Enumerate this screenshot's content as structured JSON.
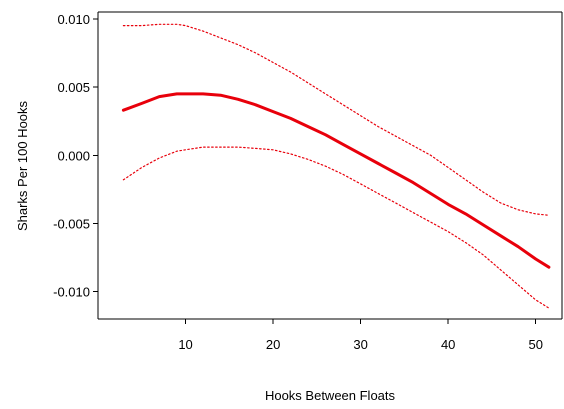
{
  "chart_data": {
    "type": "line",
    "title": "",
    "xlabel": "Hooks Between Floats",
    "ylabel": "Sharks Per 100 Hooks",
    "xlim": [
      0,
      53
    ],
    "ylim": [
      -0.012,
      0.0105
    ],
    "x_ticks": [
      10,
      20,
      30,
      40,
      50
    ],
    "y_ticks": [
      -0.01,
      -0.005,
      0.0,
      0.005,
      0.01
    ],
    "x_tick_labels": [
      "10",
      "20",
      "30",
      "40",
      "50"
    ],
    "y_tick_labels": [
      "-0.010",
      "-0.005",
      "0.000",
      "0.005",
      "0.010"
    ],
    "grid": false,
    "legend": "none",
    "colors": {
      "fit": "#e8000b",
      "bounds": "#e8000b",
      "axis": "#000000"
    },
    "series": [
      {
        "role": "fit",
        "style": "solid",
        "x": [
          2.9,
          5,
          7,
          9,
          10,
          12,
          14,
          16,
          18,
          20,
          22,
          24,
          26,
          28,
          30,
          32,
          34,
          36,
          38,
          40,
          42,
          44,
          46,
          48,
          50,
          51.5
        ],
        "y": [
          0.0033,
          0.0038,
          0.0043,
          0.0045,
          0.0045,
          0.0045,
          0.0044,
          0.0041,
          0.0037,
          0.0032,
          0.0027,
          0.0021,
          0.0015,
          0.0008,
          0.0001,
          -0.0006,
          -0.0013,
          -0.002,
          -0.0028,
          -0.0036,
          -0.0043,
          -0.0051,
          -0.0059,
          -0.0067,
          -0.0076,
          -0.0082
        ]
      },
      {
        "role": "upper",
        "style": "dotted",
        "x": [
          2.9,
          5,
          7,
          9,
          10,
          12,
          14,
          16,
          18,
          20,
          22,
          24,
          26,
          28,
          30,
          32,
          34,
          36,
          38,
          40,
          42,
          44,
          46,
          48,
          50,
          51.5
        ],
        "y": [
          0.0095,
          0.0095,
          0.0096,
          0.0096,
          0.0095,
          0.0091,
          0.0086,
          0.0081,
          0.0075,
          0.0068,
          0.0061,
          0.0053,
          0.0045,
          0.0037,
          0.0029,
          0.0021,
          0.0014,
          0.0007,
          0.0,
          -0.0009,
          -0.0018,
          -0.0027,
          -0.0035,
          -0.004,
          -0.0043,
          -0.0044
        ]
      },
      {
        "role": "lower",
        "style": "dotted",
        "x": [
          2.9,
          5,
          7,
          9,
          10,
          12,
          14,
          16,
          18,
          20,
          22,
          24,
          26,
          28,
          30,
          32,
          34,
          36,
          38,
          40,
          42,
          44,
          46,
          48,
          50,
          51.5
        ],
        "y": [
          -0.0018,
          -0.0009,
          -0.0002,
          0.0003,
          0.0004,
          0.0006,
          0.0006,
          0.0006,
          0.0005,
          0.0004,
          0.0001,
          -0.0003,
          -0.0008,
          -0.0014,
          -0.0021,
          -0.0028,
          -0.0035,
          -0.0042,
          -0.0049,
          -0.0056,
          -0.0064,
          -0.0073,
          -0.0084,
          -0.0095,
          -0.0106,
          -0.0112
        ]
      }
    ]
  }
}
